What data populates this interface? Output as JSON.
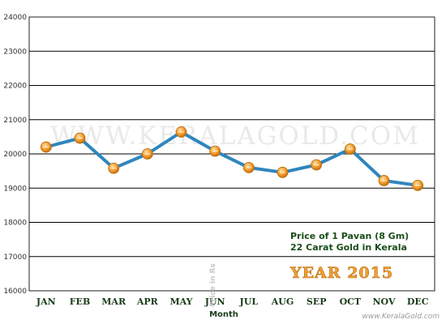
{
  "chart_data": {
    "type": "line",
    "categories": [
      "JAN",
      "FEB",
      "MAR",
      "APR",
      "MAY",
      "JUN",
      "JUL",
      "AUG",
      "SEP",
      "OCT",
      "NOV",
      "DEC"
    ],
    "series": [
      {
        "values": [
          20200,
          20460,
          19580,
          20000,
          20640,
          20080,
          19600,
          19460,
          19680,
          20140,
          19220,
          19080
        ]
      }
    ],
    "xlabel": "Month",
    "ylabel": "Price in Rs",
    "ylim": [
      16000,
      24000
    ],
    "yticks": [
      16000,
      17000,
      18000,
      19000,
      20000,
      21000,
      22000,
      23000,
      24000
    ],
    "grid": true,
    "colors": {
      "line": "#2f86bd",
      "marker": "#f5a030",
      "grid": "#000000",
      "text": "#1a3d1a"
    },
    "annotations": {
      "line1": "Price of 1 Pavan (8 Gm)",
      "line2": "22 Carat Gold in Kerala",
      "year": "YEAR 2015"
    },
    "watermark": "WWW.KERALAGOLD.COM",
    "source_url": "www.KeralaGold.com"
  }
}
